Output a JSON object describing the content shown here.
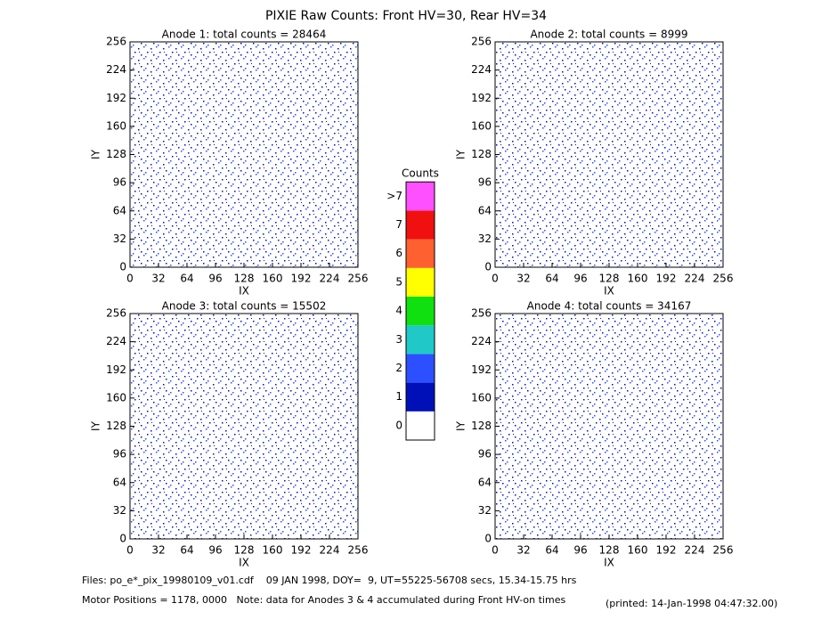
{
  "title": "PIXIE Raw Counts:  Front HV=30, Rear HV=34",
  "chart_data": [
    {
      "type": "heatmap",
      "title": "Anode 1: total counts = 28464",
      "x_label": "IX",
      "y_label": "IY",
      "xlim": [
        0,
        256
      ],
      "ylim": [
        0,
        256
      ],
      "xticks": [
        0,
        32,
        64,
        96,
        128,
        160,
        192,
        224,
        256
      ],
      "yticks": [
        0,
        32,
        64,
        96,
        128,
        160,
        192,
        224,
        256
      ]
    },
    {
      "type": "heatmap",
      "title": "Anode 2: total counts = 8999",
      "x_label": "IX",
      "y_label": "IY",
      "xlim": [
        0,
        256
      ],
      "ylim": [
        0,
        256
      ],
      "xticks": [
        0,
        32,
        64,
        96,
        128,
        160,
        192,
        224,
        256
      ],
      "yticks": [
        0,
        32,
        64,
        96,
        128,
        160,
        192,
        224,
        256
      ]
    },
    {
      "type": "heatmap",
      "title": "Anode 3: total counts = 15502",
      "x_label": "IX",
      "y_label": "IY",
      "xlim": [
        0,
        256
      ],
      "ylim": [
        0,
        256
      ],
      "xticks": [
        0,
        32,
        64,
        96,
        128,
        160,
        192,
        224,
        256
      ],
      "yticks": [
        0,
        32,
        64,
        96,
        128,
        160,
        192,
        224,
        256
      ]
    },
    {
      "type": "heatmap",
      "title": "Anode 4: total counts = 34167",
      "x_label": "IX",
      "y_label": "IY",
      "xlim": [
        0,
        256
      ],
      "ylim": [
        0,
        256
      ],
      "xticks": [
        0,
        32,
        64,
        96,
        128,
        160,
        192,
        224,
        256
      ],
      "yticks": [
        0,
        32,
        64,
        96,
        128,
        160,
        192,
        224,
        256
      ]
    }
  ],
  "colorbar": {
    "title": "Counts",
    "ticks": [
      0,
      1,
      2,
      3,
      4,
      5,
      6,
      7
    ],
    "colors": [
      "#ffffff",
      "#0010b8",
      "#2c50ff",
      "#20c8c8",
      "#10e010",
      "#ffff00",
      "#ff6030",
      "#f01010"
    ],
    "overflow_label": ">7",
    "overflow_color": "#ff50ff"
  },
  "footer": {
    "files": "Files: po_e*_pix_19980109_v01.cdf    09 JAN 1998, DOY=  9, UT=55225-56708 secs, 15.34-15.75 hrs",
    "motor": "Motor Positions = 1178, 0000   Note: data for Anodes 3 & 4 accumulated during Front HV-on times",
    "printed": "(printed: 14-Jan-1998 04:47:32.00)"
  }
}
